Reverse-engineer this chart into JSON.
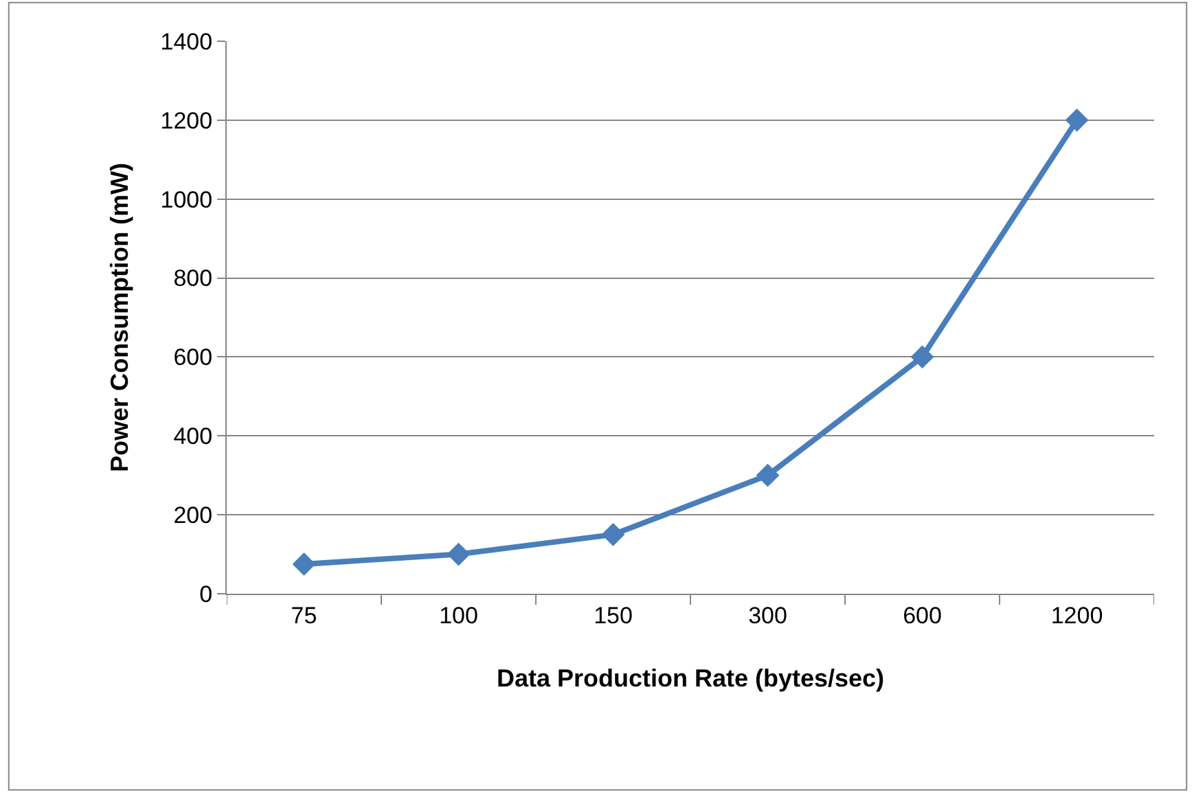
{
  "chart_data": {
    "type": "line",
    "xlabel": "Data Production Rate (bytes/sec)",
    "ylabel": "Power Consumption (mW)",
    "categories": [
      "75",
      "100",
      "150",
      "300",
      "600",
      "1200"
    ],
    "series": [
      {
        "color": "#4a7ebb",
        "values": [
          75,
          100,
          150,
          300,
          600,
          1200
        ]
      }
    ],
    "ylim": [
      0,
      1400
    ],
    "yticks": [
      0,
      200,
      400,
      600,
      800,
      1000,
      1200,
      1400
    ],
    "grid": "y",
    "marker": "diamond",
    "line_style": "solid"
  }
}
